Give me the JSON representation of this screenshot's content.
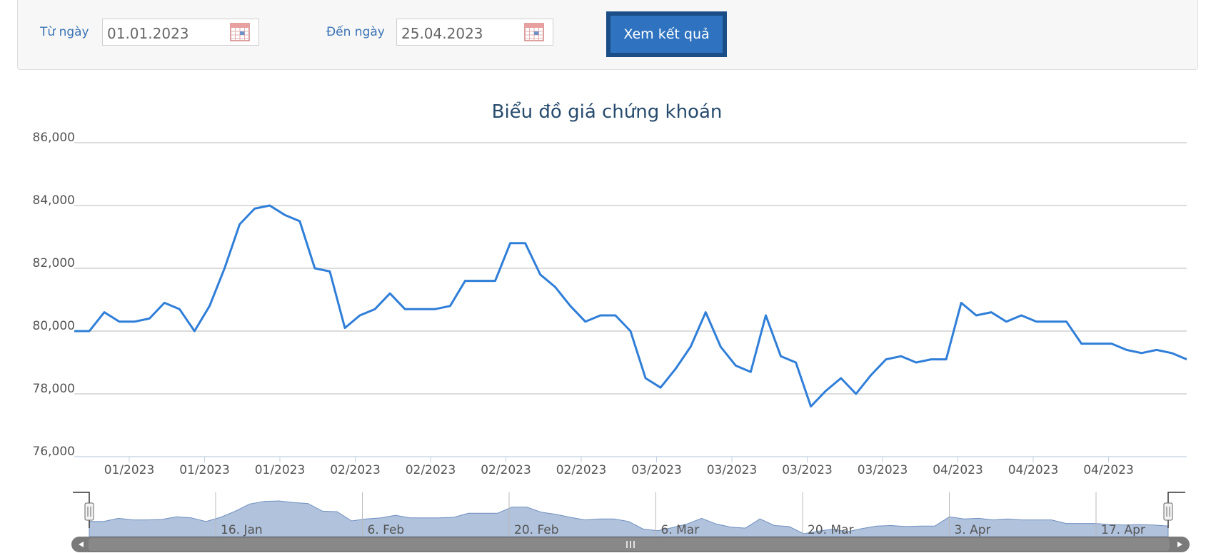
{
  "filter": {
    "from_label": "Từ ngày",
    "from_value": "01.01.2023",
    "to_label": "Đến ngày",
    "to_value": "25.04.2023",
    "submit_label": "Xem kết quả"
  },
  "chart_data": {
    "type": "line",
    "title": "Biểu đồ giá chứng khoán",
    "xlabel": "",
    "ylabel": "",
    "ylim": [
      76000,
      86000
    ],
    "y_ticks": [
      "76,000",
      "78,000",
      "80,000",
      "82,000",
      "84,000",
      "86,000"
    ],
    "x_tick_labels": [
      "01/2023",
      "01/2023",
      "01/2023",
      "02/2023",
      "02/2023",
      "02/2023",
      "02/2023",
      "03/2023",
      "03/2023",
      "03/2023",
      "03/2023",
      "04/2023",
      "04/2023",
      "04/2023"
    ],
    "navigator_labels": [
      "16. Jan",
      "6. Feb",
      "20. Feb",
      "6. Mar",
      "20. Mar",
      "3. Apr",
      "17. Apr"
    ],
    "grid": true,
    "legend": "none",
    "line_color": "#2f7ed8",
    "navigator_fill": "#b0c2dc",
    "series": [
      {
        "values": [
          80000,
          80000,
          80600,
          80300,
          80300,
          80400,
          80900,
          80700,
          80000,
          80800,
          82000,
          83400,
          83900,
          84000,
          83700,
          83500,
          82000,
          81900,
          80100,
          80500,
          80700,
          81200,
          80700,
          80700,
          80700,
          80800,
          81600,
          81600,
          81600,
          82800,
          82800,
          81800,
          81400,
          80800,
          80300,
          80500,
          80500,
          80000,
          78500,
          78200,
          78800,
          79500,
          80600,
          79500,
          78900,
          78700,
          80500,
          79200,
          79000,
          77600,
          78100,
          78500,
          78000,
          78600,
          79100,
          79200,
          79000,
          79100,
          79100,
          80900,
          80500,
          80600,
          80300,
          80500,
          80300,
          80300,
          80300,
          79600,
          79600,
          79600,
          79400,
          79300,
          79400,
          79300,
          79100
        ]
      }
    ]
  }
}
